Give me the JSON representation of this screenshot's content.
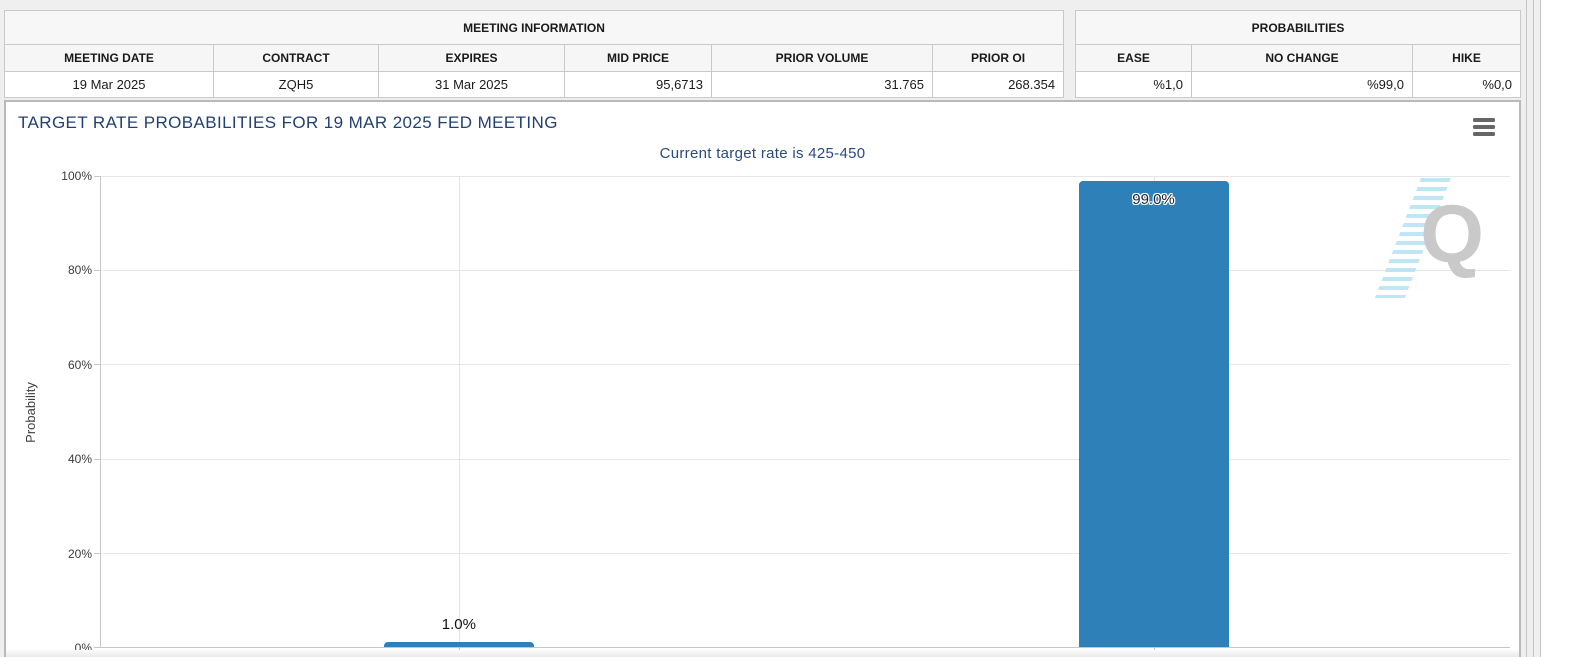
{
  "meeting_info": {
    "title": "MEETING INFORMATION",
    "columns": [
      "MEETING DATE",
      "CONTRACT",
      "EXPIRES",
      "MID PRICE",
      "PRIOR VOLUME",
      "PRIOR OI"
    ],
    "values": [
      "19 Mar 2025",
      "ZQH5",
      "31 Mar 2025",
      "95,6713",
      "31.765",
      "268.354"
    ]
  },
  "probabilities": {
    "title": "PROBABILITIES",
    "columns": [
      "EASE",
      "NO CHANGE",
      "HIKE"
    ],
    "values": [
      "%1,0",
      "%99,0",
      "%0,0"
    ]
  },
  "chart": {
    "title": "TARGET RATE PROBABILITIES FOR 19 MAR 2025 FED MEETING",
    "subtitle": "Current target rate is 425-450",
    "menu_icon": "hamburger-menu-icon",
    "watermark_letter": "Q",
    "bar_color": "#2e80b8",
    "title_color": "#234074"
  },
  "chart_data": {
    "type": "bar",
    "categories": [
      "",
      ""
    ],
    "values": [
      1.0,
      99.0
    ],
    "labels": [
      "1.0%",
      "99.0%"
    ],
    "title": "TARGET RATE PROBABILITIES FOR 19 MAR 2025 FED MEETING",
    "subtitle": "Current target rate is 425-450",
    "xlabel": "",
    "ylabel": "Probability",
    "ylim": [
      0,
      100
    ],
    "yticks": [
      "100%",
      "80%",
      "60%",
      "40%",
      "20%",
      "0%"
    ],
    "grid": true,
    "legend": "none"
  }
}
